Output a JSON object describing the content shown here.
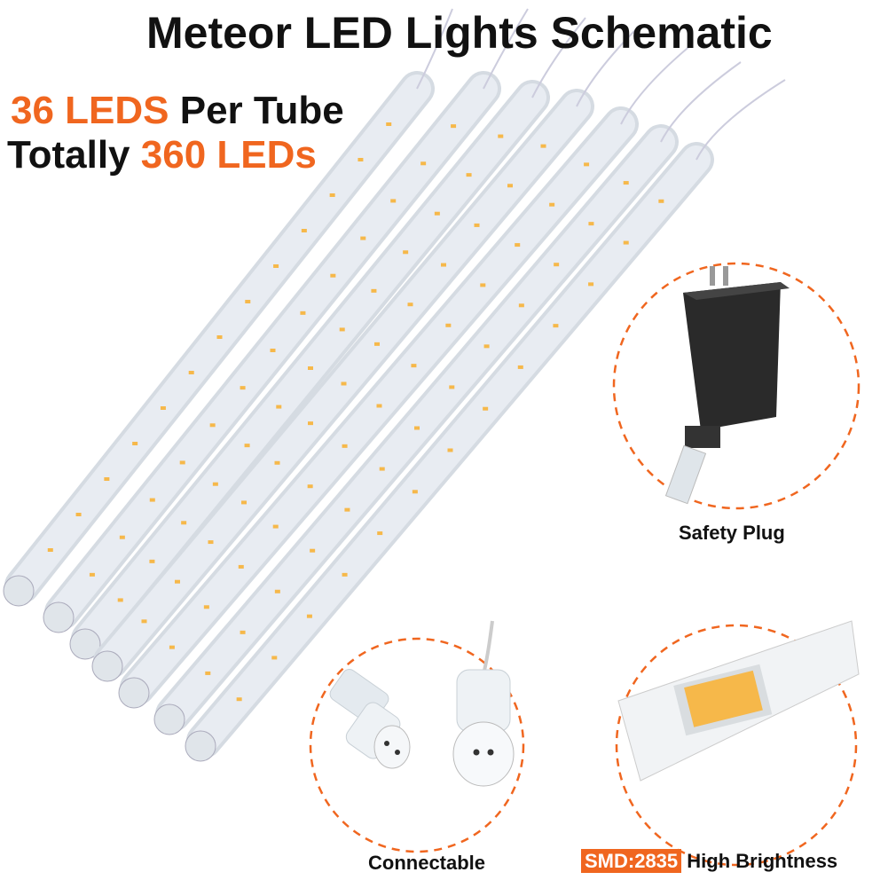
{
  "title": "Meteor LED Lights Schematic",
  "specs": {
    "line1_highlight": "36 LEDS",
    "line1_rest": " Per Tube",
    "line2_prefix": "Totally ",
    "line2_highlight": "360 LEDs"
  },
  "callouts": {
    "plug": "Safety Plug",
    "connector": "Connectable",
    "smd_badge": "SMD:2835",
    "smd_rest": " High Brightness"
  },
  "colors": {
    "accent": "#f0661f",
    "led": "#f6b84a",
    "tube": "#e8ecf2",
    "plug": "#2a2a2a"
  },
  "icons": {
    "tubes": "led-tube-image",
    "plug": "power-adapter-image",
    "connector": "waterproof-connector-image",
    "chip": "smd-led-chip-image"
  }
}
